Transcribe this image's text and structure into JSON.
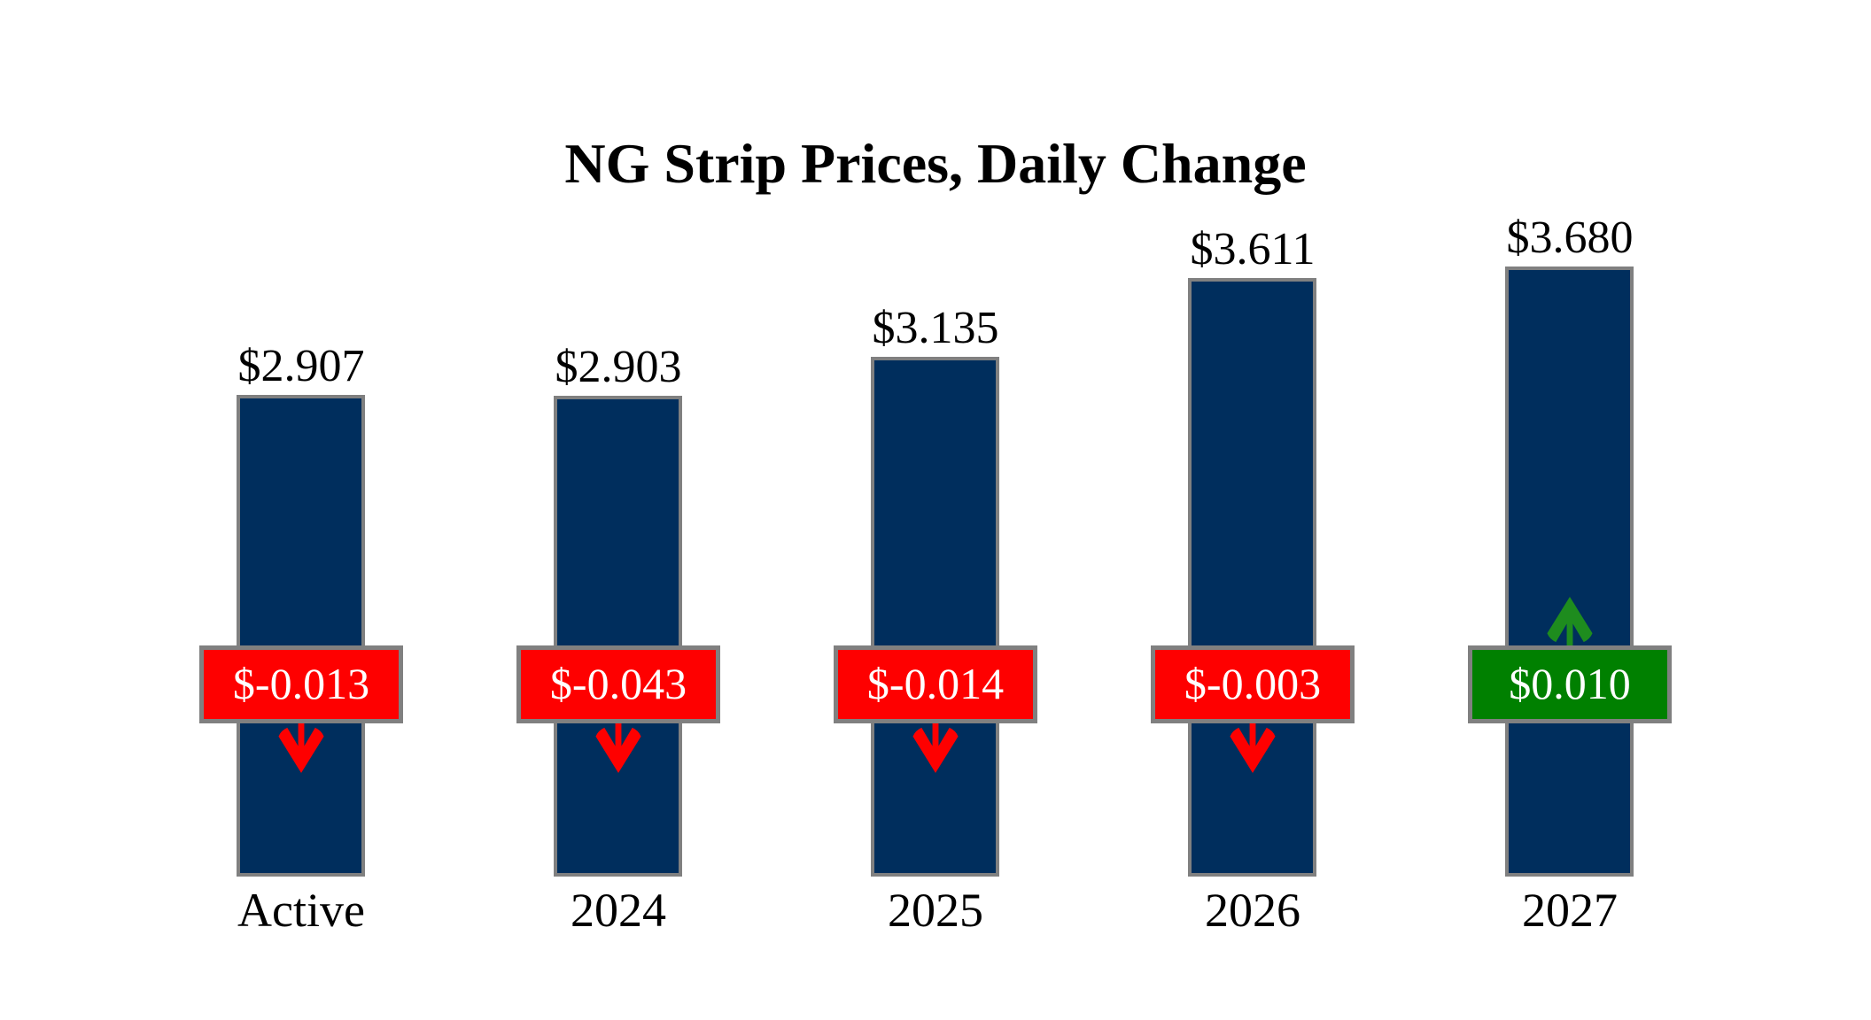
{
  "chart_data": {
    "type": "bar",
    "title": "NG Strip Prices, Daily Change",
    "categories": [
      "Active",
      "2024",
      "2025",
      "2026",
      "2027"
    ],
    "values": [
      2.907,
      2.903,
      3.135,
      3.611,
      3.68
    ],
    "value_labels": [
      "$2.907",
      "$2.903",
      "$3.135",
      "$3.611",
      "$3.680"
    ],
    "changes": [
      -0.013,
      -0.043,
      -0.014,
      -0.003,
      0.01
    ],
    "change_labels": [
      "$-0.013",
      "$-0.043",
      "$-0.014",
      "$-0.003",
      "$0.010"
    ],
    "change_directions": [
      "down",
      "down",
      "down",
      "down",
      "up"
    ],
    "xlabel": "",
    "ylabel": "",
    "ylim": [
      0,
      3.68
    ],
    "grid": false,
    "legend_position": "none",
    "colors": {
      "bar_fill": "#002E5D",
      "bar_border": "#808080",
      "negative_badge": "#FE0000",
      "positive_badge": "#008000",
      "badge_border": "#808080",
      "badge_text": "#FFFFFF",
      "label_text": "#000000",
      "negative_arrow": "#FE0000",
      "positive_arrow": "#1E8C1E"
    }
  }
}
